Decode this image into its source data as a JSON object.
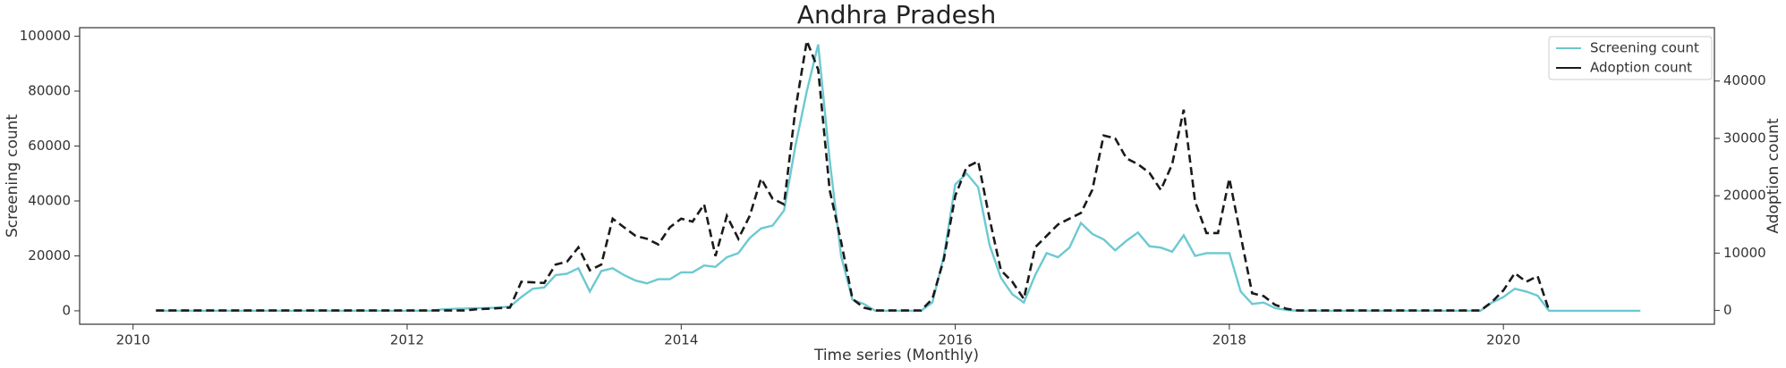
{
  "chart_data": {
    "type": "line",
    "title": "Andhra Pradesh",
    "xlabel": "Time series (Monthly)",
    "ylabel": "Screening count",
    "y2label": "Adoption count",
    "x": [
      2010.167,
      2010.25,
      2010.333,
      2010.417,
      2010.5,
      2010.583,
      2010.667,
      2010.75,
      2010.833,
      2010.917,
      2011.0,
      2011.083,
      2011.167,
      2011.25,
      2011.333,
      2011.417,
      2011.5,
      2011.583,
      2011.667,
      2011.75,
      2011.833,
      2011.917,
      2012.0,
      2012.083,
      2012.167,
      2012.25,
      2012.333,
      2012.417,
      2012.5,
      2012.583,
      2012.667,
      2012.75,
      2012.833,
      2012.917,
      2013.0,
      2013.083,
      2013.167,
      2013.25,
      2013.333,
      2013.417,
      2013.5,
      2013.583,
      2013.667,
      2013.75,
      2013.833,
      2013.917,
      2014.0,
      2014.083,
      2014.167,
      2014.25,
      2014.333,
      2014.417,
      2014.5,
      2014.583,
      2014.667,
      2014.75,
      2014.833,
      2014.917,
      2015.0,
      2015.083,
      2015.167,
      2015.25,
      2015.333,
      2015.417,
      2015.5,
      2015.583,
      2015.667,
      2015.75,
      2015.833,
      2015.917,
      2016.0,
      2016.083,
      2016.167,
      2016.25,
      2016.333,
      2016.417,
      2016.5,
      2016.583,
      2016.667,
      2016.75,
      2016.833,
      2016.917,
      2017.0,
      2017.083,
      2017.167,
      2017.25,
      2017.333,
      2017.417,
      2017.5,
      2017.583,
      2017.667,
      2017.75,
      2017.833,
      2017.917,
      2018.0,
      2018.083,
      2018.167,
      2018.25,
      2018.333,
      2018.417,
      2018.5,
      2018.583,
      2018.667,
      2018.75,
      2018.833,
      2018.917,
      2019.0,
      2019.083,
      2019.167,
      2019.25,
      2019.333,
      2019.417,
      2019.5,
      2019.583,
      2019.667,
      2019.75,
      2019.833,
      2019.917,
      2020.0,
      2020.083,
      2020.167,
      2020.25,
      2020.333,
      2020.417,
      2020.5,
      2020.583,
      2020.667,
      2020.75,
      2020.833,
      2020.917,
      2021.0
    ],
    "series": [
      {
        "name": "Screening count",
        "color": "#6cc9d1",
        "axis": "y",
        "dashed": false,
        "values": [
          0,
          0,
          0,
          0,
          0,
          0,
          0,
          0,
          0,
          0,
          0,
          0,
          0,
          0,
          0,
          0,
          0,
          0,
          0,
          0,
          0,
          0,
          0,
          0,
          0,
          500,
          700,
          800,
          1000,
          1000,
          1200,
          1500,
          5000,
          8000,
          8500,
          13000,
          13500,
          15500,
          7000,
          14500,
          15500,
          13000,
          11000,
          10000,
          11500,
          11500,
          14000,
          14000,
          16500,
          16000,
          19500,
          21000,
          26500,
          30000,
          31000,
          36500,
          60000,
          80000,
          97000,
          55000,
          20000,
          4000,
          2500,
          0,
          0,
          0,
          0,
          0,
          3000,
          20000,
          46000,
          50000,
          45000,
          24000,
          12000,
          6000,
          3000,
          13000,
          21000,
          19500,
          23000,
          32000,
          28000,
          26000,
          22000,
          25500,
          28500,
          23500,
          23000,
          21500,
          27500,
          20000,
          21000,
          21000,
          21000,
          7000,
          2500,
          3000,
          1000,
          300,
          0,
          0,
          0,
          0,
          0,
          0,
          0,
          0,
          0,
          0,
          0,
          0,
          0,
          0,
          0,
          0,
          0,
          3000,
          5000,
          8000,
          7000,
          5500,
          0,
          0,
          0,
          0,
          0,
          0,
          0,
          0,
          0
        ]
      },
      {
        "name": "Adoption count",
        "color": "#1a1a1a",
        "axis": "y2",
        "dashed": true,
        "values": [
          0,
          0,
          0,
          0,
          0,
          0,
          0,
          0,
          0,
          0,
          0,
          0,
          0,
          0,
          0,
          0,
          0,
          0,
          0,
          0,
          0,
          0,
          0,
          0,
          0,
          0,
          0,
          0,
          200,
          300,
          400,
          500,
          5000,
          4900,
          4800,
          8000,
          8500,
          11000,
          7000,
          8000,
          16000,
          14500,
          13000,
          12500,
          11500,
          14500,
          16000,
          15500,
          18500,
          9500,
          16500,
          12500,
          16500,
          23000,
          19500,
          18500,
          35000,
          47000,
          42000,
          21000,
          12000,
          2000,
          500,
          0,
          0,
          0,
          0,
          0,
          2000,
          9000,
          20000,
          25000,
          26000,
          16000,
          7000,
          5000,
          2000,
          11000,
          13000,
          15000,
          16000,
          17000,
          21000,
          30500,
          30000,
          26500,
          25500,
          24000,
          21000,
          25500,
          35000,
          19000,
          13500,
          13500,
          23000,
          13000,
          3000,
          2500,
          1000,
          300,
          0,
          0,
          0,
          0,
          0,
          0,
          0,
          0,
          0,
          0,
          0,
          0,
          0,
          0,
          0,
          0,
          0,
          1500,
          3500,
          6500,
          5000,
          6000,
          0,
          null,
          null,
          null,
          null,
          null,
          null,
          null,
          null
        ]
      }
    ],
    "xlim": [
      2009.61,
      2021.54
    ],
    "xticks": [
      2010,
      2012,
      2014,
      2016,
      2018,
      2020
    ],
    "ylim": [
      -4900,
      103100
    ],
    "yticks": [
      0,
      20000,
      40000,
      60000,
      80000,
      100000
    ],
    "y2lim": [
      -2400,
      49300
    ],
    "y2ticks": [
      0,
      10000,
      20000,
      30000,
      40000
    ],
    "legend": "upper right"
  }
}
